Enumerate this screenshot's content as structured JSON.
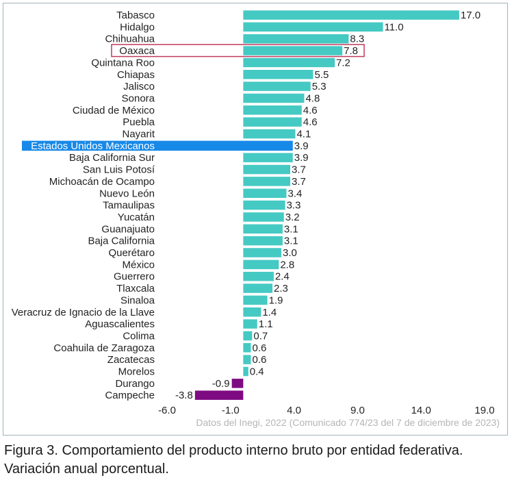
{
  "chart_data": {
    "type": "bar",
    "orientation": "horizontal",
    "title": "",
    "xlabel": "",
    "ylabel": "",
    "xlim": [
      -6.0,
      19.0
    ],
    "x_ticks": [
      "-6.0",
      "-1.0",
      "4.0",
      "9.0",
      "14.0",
      "19.0"
    ],
    "x_tick_values": [
      -6.0,
      -1.0,
      4.0,
      9.0,
      14.0,
      19.0
    ],
    "grid": false,
    "legend": "none",
    "colors": {
      "positive": "#45c9c3",
      "negative": "#7e0b82",
      "national": "#1789e8",
      "highlight_box": "#c0395a"
    },
    "highlighted": "Oaxaca",
    "national_category": "Estados Unidos Mexicanos",
    "categories": [
      "Tabasco",
      "Hidalgo",
      "Chihuahua",
      "Oaxaca",
      "Quintana Roo",
      "Chiapas",
      "Jalisco",
      "Sonora",
      "Ciudad de México",
      "Puebla",
      "Nayarit",
      "Estados Unidos Mexicanos",
      "Baja California Sur",
      "San Luis Potosí",
      "Michoacán de Ocampo",
      "Nuevo León",
      "Tamaulipas",
      "Yucatán",
      "Guanajuato",
      "Baja California",
      "Querétaro",
      "México",
      "Guerrero",
      "Tlaxcala",
      "Sinaloa",
      "Veracruz de Ignacio de la Llave",
      "Aguascalientes",
      "Colima",
      "Coahuila de Zaragoza",
      "Zacatecas",
      "Morelos",
      "Durango",
      "Campeche"
    ],
    "values": [
      17.0,
      11.0,
      8.3,
      7.8,
      7.2,
      5.5,
      5.3,
      4.8,
      4.6,
      4.6,
      4.1,
      3.9,
      3.9,
      3.7,
      3.7,
      3.4,
      3.3,
      3.2,
      3.1,
      3.1,
      3.0,
      2.8,
      2.4,
      2.3,
      1.9,
      1.4,
      1.1,
      0.7,
      0.6,
      0.6,
      0.4,
      -0.9,
      -3.8
    ],
    "value_labels": [
      "17.0",
      "11.0",
      "8.3",
      "7.8",
      "7.2",
      "5.5",
      "5.3",
      "4.8",
      "4.6",
      "4.6",
      "4.1",
      "3.9",
      "3.9",
      "3.7",
      "3.7",
      "3.4",
      "3.3",
      "3.2",
      "3.1",
      "3.1",
      "3.0",
      "2.8",
      "2.4",
      "2.3",
      "1.9",
      "1.4",
      "1.1",
      "0.7",
      "0.6",
      "0.6",
      "0.4",
      "-0.9",
      "-3.8"
    ],
    "source_note": "Datos del Inegi, 2022 (Comunicado 774/23 del 7 de diciembre de 2023)"
  },
  "caption": "Figura 3. Comportamiento del producto interno bruto por entidad federativa. Variación anual porcentual."
}
